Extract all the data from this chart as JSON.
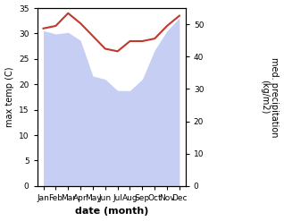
{
  "months": [
    "Jan",
    "Feb",
    "Mar",
    "Apr",
    "May",
    "Jun",
    "Jul",
    "Aug",
    "Sep",
    "Oct",
    "Nov",
    "Dec"
  ],
  "temp_max": [
    31.0,
    31.5,
    34.0,
    32.0,
    29.5,
    27.0,
    26.5,
    28.5,
    28.5,
    29.0,
    31.5,
    33.5
  ],
  "precipitation": [
    48.0,
    47.0,
    47.5,
    45.0,
    34.0,
    33.0,
    29.5,
    29.5,
    33.0,
    42.0,
    48.0,
    52.0
  ],
  "temp_color": "#c0392b",
  "precip_fill_color": "#b3bef0",
  "precip_fill_alpha": 0.75,
  "ylabel_left": "max temp (C)",
  "ylabel_right": "med. precipitation\n(kg/m2)",
  "xlabel": "date (month)",
  "ylim_left": [
    0,
    35
  ],
  "ylim_right": [
    0,
    55
  ],
  "yticks_left": [
    0,
    5,
    10,
    15,
    20,
    25,
    30,
    35
  ],
  "yticks_right": [
    0,
    10,
    20,
    30,
    40,
    50
  ],
  "bg_color": "#ffffff",
  "temp_linewidth": 1.5,
  "xlabel_fontsize": 8,
  "ylabel_fontsize": 7,
  "tick_fontsize": 6.5
}
